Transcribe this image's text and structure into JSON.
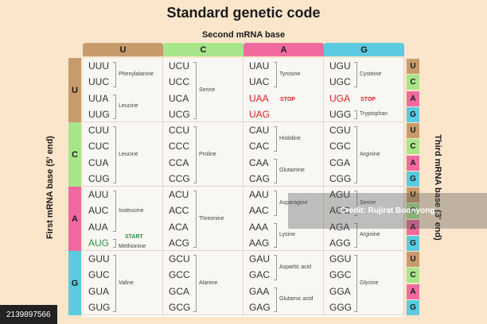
{
  "title": "Standard genetic code",
  "second_base_label": "Second mRNA base",
  "first_base_label": "First mRNA base (5' end)",
  "third_base_label": "Third mRNA base (3' end)",
  "column_headers": [
    {
      "label": "U",
      "color": "#c89b6d"
    },
    {
      "label": "C",
      "color": "#a8e58a"
    },
    {
      "label": "A",
      "color": "#f06aa0"
    },
    {
      "label": "G",
      "color": "#5ccbe0"
    }
  ],
  "row_headers": [
    {
      "label": "U",
      "color": "#c89b6d"
    },
    {
      "label": "C",
      "color": "#a8e58a"
    },
    {
      "label": "A",
      "color": "#f06aa0"
    },
    {
      "label": "G",
      "color": "#5ccbe0"
    }
  ],
  "third_bases": [
    "U",
    "C",
    "A",
    "G",
    "U",
    "C",
    "A",
    "G",
    "U",
    "C",
    "A",
    "G",
    "U",
    "C",
    "A",
    "G"
  ],
  "stop_label": "STOP",
  "start_label": "START",
  "cells": [
    [
      {
        "codons": [
          "UUU",
          "UUC",
          "UUA",
          "UUG"
        ],
        "groups": [
          {
            "name": "Phenylalanine",
            "from": 0,
            "to": 1
          },
          {
            "name": "Leucine",
            "from": 2,
            "to": 3
          }
        ]
      },
      {
        "codons": [
          "UCU",
          "UCC",
          "UCA",
          "UCG"
        ],
        "groups": [
          {
            "name": "Serine",
            "from": 0,
            "to": 3
          }
        ]
      },
      {
        "codons": [
          "UAU",
          "UAC",
          "UAA",
          "UAG"
        ],
        "groups": [
          {
            "name": "Tyrosine",
            "from": 0,
            "to": 1
          }
        ]
      },
      {
        "codons": [
          "UGU",
          "UGC",
          "UGA",
          "UGG"
        ],
        "groups": [
          {
            "name": "Cysteine",
            "from": 0,
            "to": 1
          },
          {
            "name": "Tryptophan",
            "from": 3,
            "to": 3
          }
        ]
      }
    ],
    [
      {
        "codons": [
          "CUU",
          "CUC",
          "CUA",
          "CUG"
        ],
        "groups": [
          {
            "name": "Leucine",
            "from": 0,
            "to": 3
          }
        ]
      },
      {
        "codons": [
          "CCU",
          "CCC",
          "CCA",
          "CCG"
        ],
        "groups": [
          {
            "name": "Proline",
            "from": 0,
            "to": 3
          }
        ]
      },
      {
        "codons": [
          "CAU",
          "CAC",
          "CAA",
          "CAG"
        ],
        "groups": [
          {
            "name": "Histidine",
            "from": 0,
            "to": 1
          },
          {
            "name": "Glutamine",
            "from": 2,
            "to": 3
          }
        ]
      },
      {
        "codons": [
          "CGU",
          "CGC",
          "CGA",
          "CGG"
        ],
        "groups": [
          {
            "name": "Arginine",
            "from": 0,
            "to": 3
          }
        ]
      }
    ],
    [
      {
        "codons": [
          "AUU",
          "AUC",
          "AUA",
          "AUG"
        ],
        "groups": [
          {
            "name": "Isoleucine",
            "from": 0,
            "to": 2
          },
          {
            "name": "Methionine",
            "from": 3,
            "to": 3
          }
        ]
      },
      {
        "codons": [
          "ACU",
          "ACC",
          "ACA",
          "ACG"
        ],
        "groups": [
          {
            "name": "Threonine",
            "from": 0,
            "to": 3
          }
        ]
      },
      {
        "codons": [
          "AAU",
          "AAC",
          "AAA",
          "AAG"
        ],
        "groups": [
          {
            "name": "Asparagine",
            "from": 0,
            "to": 1
          },
          {
            "name": "Lysine",
            "from": 2,
            "to": 3
          }
        ]
      },
      {
        "codons": [
          "AGU",
          "AGC",
          "AGA",
          "AGG"
        ],
        "groups": [
          {
            "name": "Serine",
            "from": 0,
            "to": 1
          },
          {
            "name": "Arginine",
            "from": 2,
            "to": 3
          }
        ]
      }
    ],
    [
      {
        "codons": [
          "GUU",
          "GUC",
          "GUA",
          "GUG"
        ],
        "groups": [
          {
            "name": "Valine",
            "from": 0,
            "to": 3
          }
        ]
      },
      {
        "codons": [
          "GCU",
          "GCC",
          "GCA",
          "GCG"
        ],
        "groups": [
          {
            "name": "Alanine",
            "from": 0,
            "to": 3
          }
        ]
      },
      {
        "codons": [
          "GAU",
          "GAC",
          "GAA",
          "GAG"
        ],
        "groups": [
          {
            "name": "Aspartic acid",
            "from": 0,
            "to": 1
          },
          {
            "name": "Glutamic acid",
            "from": 2,
            "to": 3
          }
        ]
      },
      {
        "codons": [
          "GGU",
          "GGC",
          "GGA",
          "GGG"
        ],
        "groups": [
          {
            "name": "Glycine",
            "from": 0,
            "to": 3
          }
        ]
      }
    ]
  ],
  "stop_codons": [
    "UAA",
    "UAG",
    "UGA"
  ],
  "start_codon": "AUG",
  "watermark": "Credit: Rujirat Boonyong",
  "stock_id": "2139897566"
}
